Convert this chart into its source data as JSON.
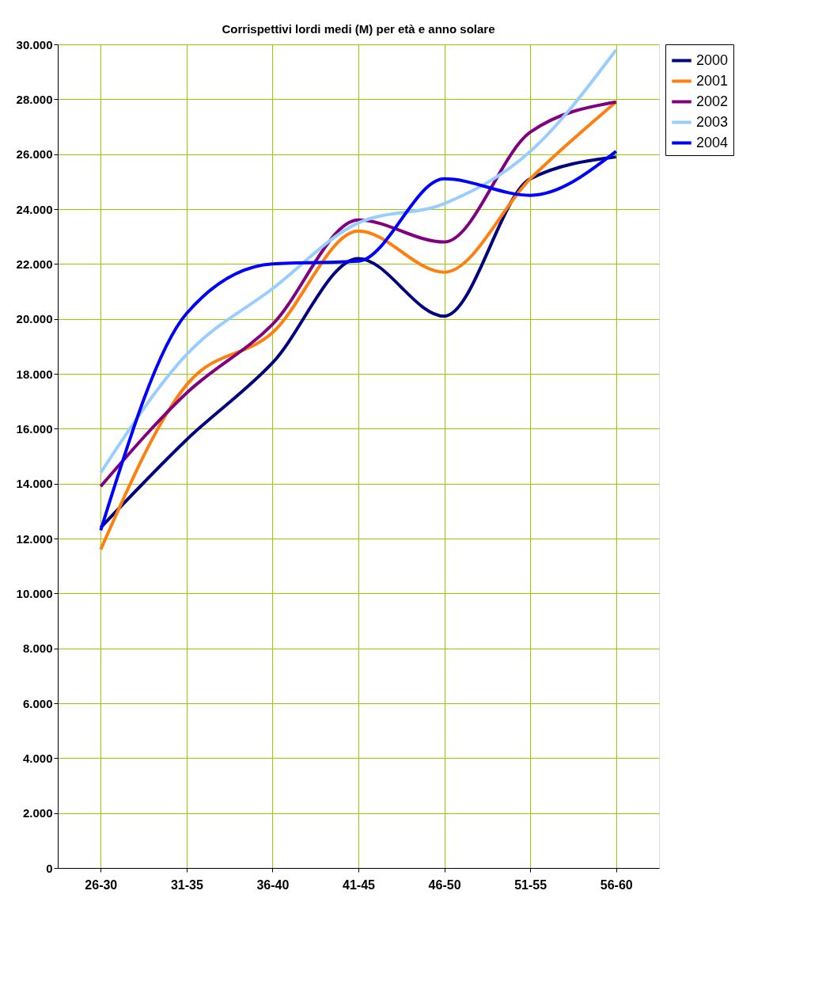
{
  "chart_data": {
    "type": "line",
    "title": "Corrispettivi lordi medi (M) per età e anno solare",
    "categories": [
      "26-30",
      "31-35",
      "36-40",
      "41-45",
      "46-50",
      "51-55",
      "56-60"
    ],
    "series": [
      {
        "name": "2000",
        "color": "#000080",
        "values": [
          12400,
          15600,
          18400,
          22200,
          20100,
          25100,
          25900
        ]
      },
      {
        "name": "2001",
        "color": "#ff7f0e",
        "values": [
          11600,
          17600,
          19500,
          23200,
          21700,
          25100,
          27900
        ]
      },
      {
        "name": "2002",
        "color": "#800080",
        "values": [
          13900,
          17300,
          19800,
          23600,
          22800,
          26800,
          27900
        ]
      },
      {
        "name": "2003",
        "color": "#99ccff",
        "values": [
          14400,
          18700,
          21100,
          23500,
          24200,
          26100,
          29800
        ]
      },
      {
        "name": "2004",
        "color": "#0000ff",
        "values": [
          12300,
          20200,
          22000,
          22100,
          25100,
          24500,
          26100
        ]
      }
    ],
    "ylim": [
      0,
      30000
    ],
    "yticks": [
      {
        "value": 0,
        "label": "0"
      },
      {
        "value": 2000,
        "label": "2.000"
      },
      {
        "value": 4000,
        "label": "4.000"
      },
      {
        "value": 6000,
        "label": "6.000"
      },
      {
        "value": 8000,
        "label": "8.000"
      },
      {
        "value": 10000,
        "label": "10.000"
      },
      {
        "value": 12000,
        "label": "12.000"
      },
      {
        "value": 14000,
        "label": "14.000"
      },
      {
        "value": 16000,
        "label": "16.000"
      },
      {
        "value": 18000,
        "label": "18.000"
      },
      {
        "value": 20000,
        "label": "20.000"
      },
      {
        "value": 22000,
        "label": "22.000"
      },
      {
        "value": 24000,
        "label": "24.000"
      },
      {
        "value": 26000,
        "label": "26.000"
      },
      {
        "value": 28000,
        "label": "28.000"
      },
      {
        "value": 30000,
        "label": "30.000"
      }
    ],
    "grid": true,
    "legend": "right",
    "marker": "none",
    "line_style": "solid"
  }
}
